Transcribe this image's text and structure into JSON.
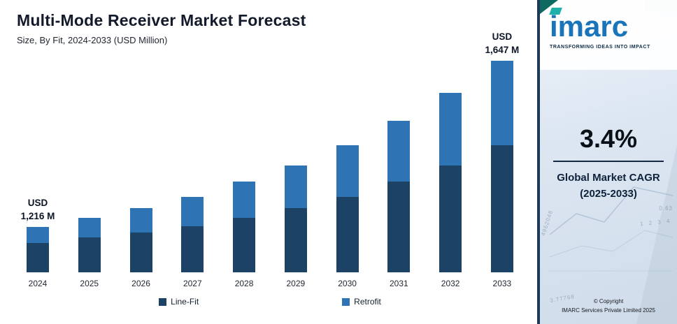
{
  "header": {
    "title": "Multi-Mode Receiver Market Forecast",
    "subtitle": "Size, By Fit, 2024-2033 (USD Million)"
  },
  "chart_data": {
    "type": "bar",
    "stacked": true,
    "title": "Multi-Mode Receiver Market Forecast",
    "subtitle": "Size, By Fit, 2024-2033 (USD Million)",
    "categories": [
      "2024",
      "2025",
      "2026",
      "2027",
      "2028",
      "2029",
      "2030",
      "2031",
      "2032",
      "2033"
    ],
    "series": [
      {
        "name": "Line-Fit",
        "color": "#1c4266",
        "values": [
          42,
          50,
          57,
          66,
          78,
          92,
          108,
          130,
          153,
          182
        ]
      },
      {
        "name": "Retrofit",
        "color": "#2e74b5",
        "values": [
          23,
          28,
          35,
          42,
          52,
          61,
          74,
          87,
          104,
          121
        ]
      }
    ],
    "value_unit": "relative bar heights (chart drawn not to numeric scale; only 2024 and 2033 totals labeled)",
    "labeled_totals": {
      "2024": "USD 1,216 M",
      "2033": "USD 1,647 M"
    },
    "annotations": [
      {
        "category": "2024",
        "lines": [
          "USD",
          "1,216 M"
        ]
      },
      {
        "category": "2033",
        "lines": [
          "USD",
          "1,647 M"
        ]
      }
    ],
    "legend_position": "bottom",
    "xlabel": "",
    "ylabel": ""
  },
  "sidebar": {
    "logo_text": "imarc",
    "tagline": "TRANSFORMING IDEAS INTO IMPACT",
    "cagr_value": "3.4%",
    "cagr_label_line1": "Global Market CAGR",
    "cagr_label_line2": "(2025-2033)",
    "copyright_line1": "© Copyright",
    "copyright_line2": "IMARC Services Private Limited 2025",
    "decorative_numbers": [
      "4962048",
      "1 2 3 4",
      "0.63",
      "3.77768"
    ]
  },
  "colors": {
    "line_fit": "#1c4266",
    "retrofit": "#2e74b5",
    "logo_blue": "#1a74ba",
    "accent_teal": "#1fb1a9",
    "sidebar_bg": "#dde7f2",
    "divider": "#152a40"
  }
}
